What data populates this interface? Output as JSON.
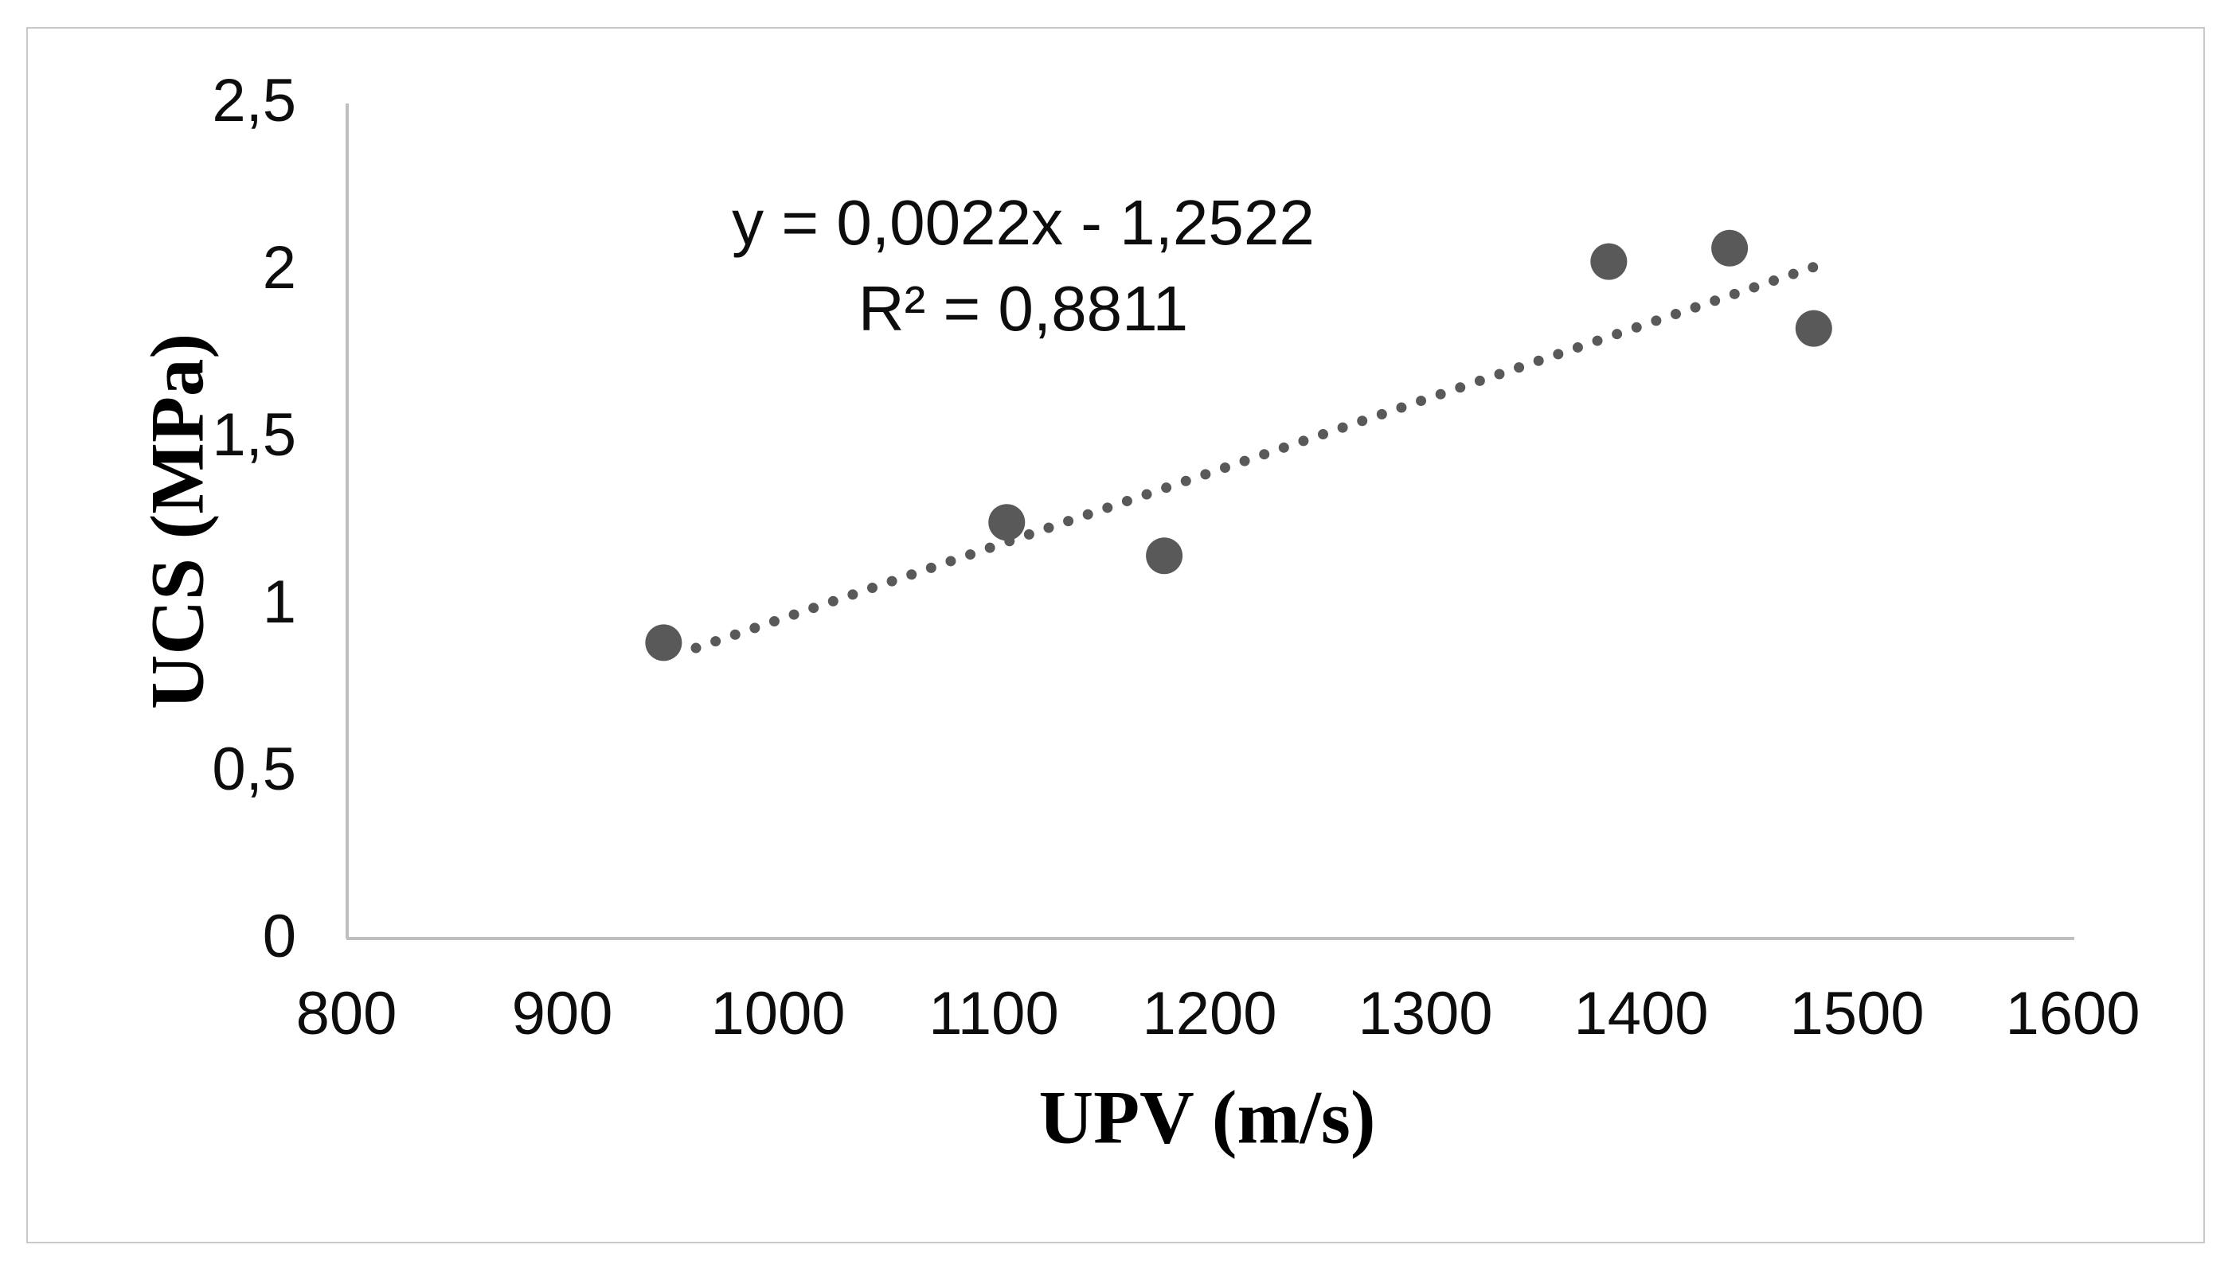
{
  "chart_data": {
    "type": "scatter",
    "title": "",
    "xlabel": "UPV (m/s)",
    "ylabel": "UCS (MPa)",
    "xlim": [
      800,
      1600
    ],
    "ylim": [
      0,
      2.5
    ],
    "grid": false,
    "legend": false,
    "x_ticks": [
      {
        "label": "800",
        "value": 800
      },
      {
        "label": "900",
        "value": 900
      },
      {
        "label": "1000",
        "value": 1000
      },
      {
        "label": "1100",
        "value": 1100
      },
      {
        "label": "1200",
        "value": 1200
      },
      {
        "label": "1300",
        "value": 1300
      },
      {
        "label": "1400",
        "value": 1400
      },
      {
        "label": "1500",
        "value": 1500
      },
      {
        "label": "1600",
        "value": 1600
      }
    ],
    "y_ticks": [
      {
        "label": "0",
        "value": 0
      },
      {
        "label": "0,5",
        "value": 0.5
      },
      {
        "label": "1",
        "value": 1
      },
      {
        "label": "1,5",
        "value": 1.5
      },
      {
        "label": "2",
        "value": 2
      },
      {
        "label": "2,5",
        "value": 2.5
      }
    ],
    "points": [
      {
        "x": 947,
        "y": 0.88
      },
      {
        "x": 1106,
        "y": 1.24
      },
      {
        "x": 1179,
        "y": 1.14
      },
      {
        "x": 1385,
        "y": 2.02
      },
      {
        "x": 1441,
        "y": 2.06
      },
      {
        "x": 1480,
        "y": 1.82
      }
    ],
    "trendline": {
      "style": "dotted",
      "slope": 0.0022,
      "intercept": -1.2522,
      "x_start": 962,
      "x_end": 1486
    },
    "annotation": {
      "equation": "y = 0,0022x - 1,2522",
      "r_squared": "R² = 0,8811"
    },
    "colors": {
      "marker": "#595959",
      "trendline": "#595959",
      "axis_line": "#bfbfbf",
      "text": "#0d0d0d",
      "frame_border": "#c9c9c9",
      "background": "#ffffff"
    }
  }
}
